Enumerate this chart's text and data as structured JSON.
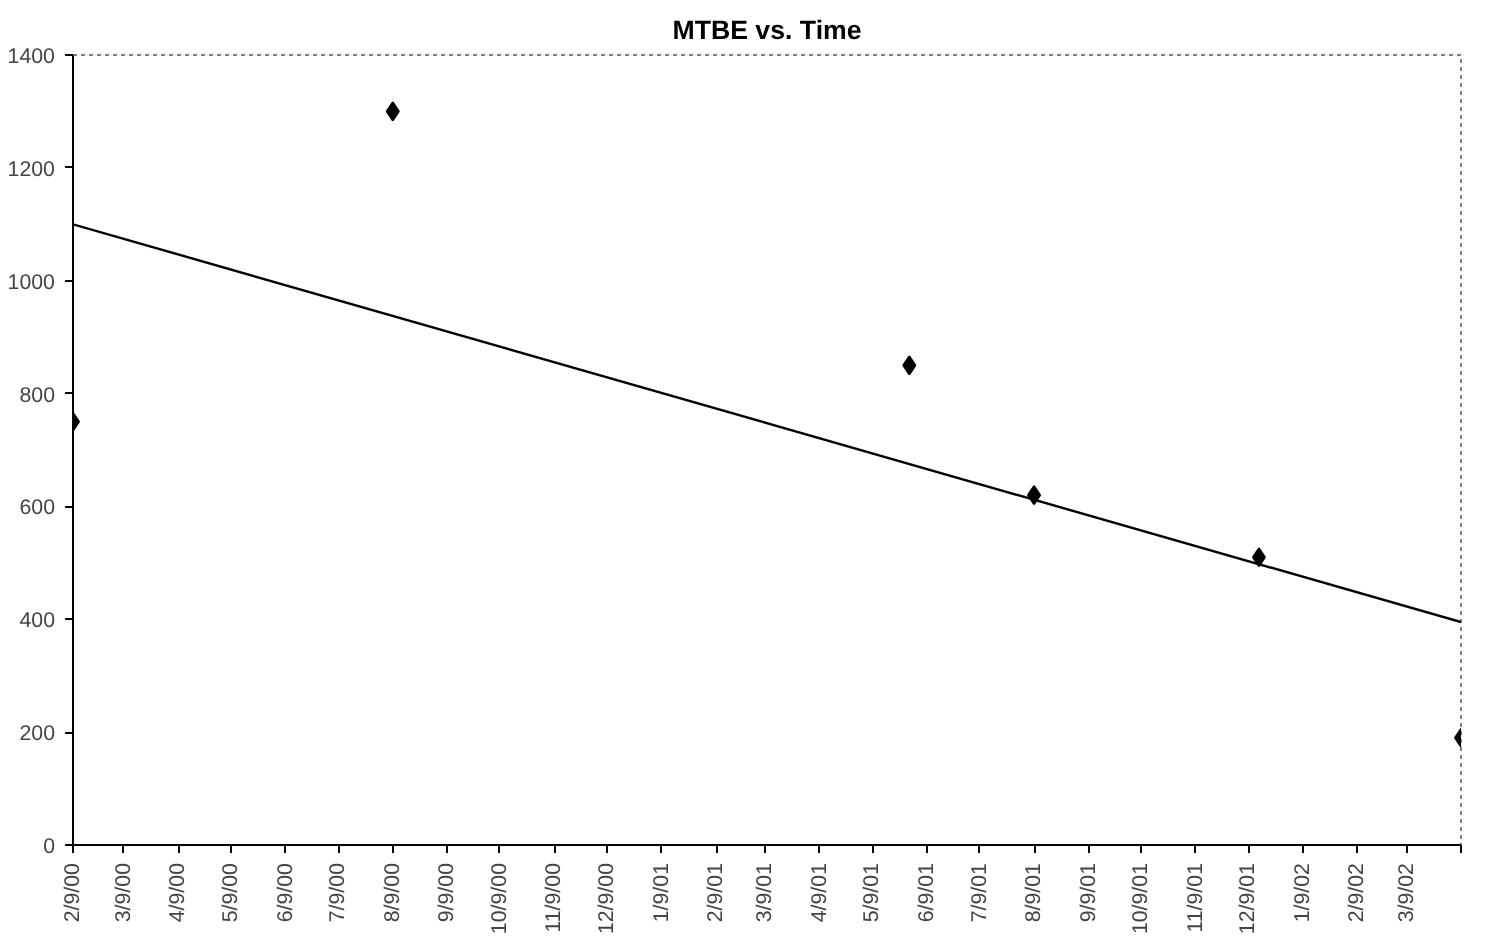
{
  "chart_data": {
    "type": "scatter",
    "title": "MTBE vs. Time",
    "x": [
      "2000-02-09",
      "2000-08-09",
      "2001-05-30",
      "2001-08-09",
      "2001-12-15",
      "2002-04-09"
    ],
    "series": [
      {
        "color": "#000000",
        "marker": "diamond",
        "values": [
          750,
          1300,
          850,
          620,
          510,
          190
        ]
      },
      {
        "type": "line",
        "color": "#000000",
        "marker": "none",
        "x": [
          "2000-02-09",
          "2002-04-09"
        ],
        "values": [
          1100,
          395
        ]
      }
    ],
    "xlim": [
      "2000-02-09",
      "2002-04-09"
    ],
    "xticks": [
      {
        "value": "2000-02-09",
        "label": "2/9/00"
      },
      {
        "value": "2000-03-09",
        "label": "3/9/00"
      },
      {
        "value": "2000-04-09",
        "label": "4/9/00"
      },
      {
        "value": "2000-05-09",
        "label": "5/9/00"
      },
      {
        "value": "2000-06-09",
        "label": "6/9/00"
      },
      {
        "value": "2000-07-09",
        "label": "7/9/00"
      },
      {
        "value": "2000-08-09",
        "label": "8/9/00"
      },
      {
        "value": "2000-09-09",
        "label": "9/9/00"
      },
      {
        "value": "2000-10-09",
        "label": "10/9/00"
      },
      {
        "value": "2000-11-09",
        "label": "11/9/00"
      },
      {
        "value": "2000-12-09",
        "label": "12/9/00"
      },
      {
        "value": "2001-01-09",
        "label": "1/9/01"
      },
      {
        "value": "2001-02-09",
        "label": "2/9/01"
      },
      {
        "value": "2001-03-09",
        "label": "3/9/01"
      },
      {
        "value": "2001-04-09",
        "label": "4/9/01"
      },
      {
        "value": "2001-05-09",
        "label": "5/9/01"
      },
      {
        "value": "2001-06-09",
        "label": "6/9/01"
      },
      {
        "value": "2001-07-09",
        "label": "7/9/01"
      },
      {
        "value": "2001-08-09",
        "label": "8/9/01"
      },
      {
        "value": "2001-09-09",
        "label": "9/9/01"
      },
      {
        "value": "2001-10-09",
        "label": "10/9/01"
      },
      {
        "value": "2001-11-09",
        "label": "11/9/01"
      },
      {
        "value": "2001-12-09",
        "label": "12/9/01"
      },
      {
        "value": "2002-01-09",
        "label": "1/9/02"
      },
      {
        "value": "2002-02-09",
        "label": "2/9/02"
      },
      {
        "value": "2002-03-09",
        "label": "3/9/02"
      },
      {
        "value": "2002-04-09",
        "label": null
      }
    ],
    "ylim": [
      0,
      1400
    ],
    "yticks": [
      0,
      200,
      400,
      600,
      800,
      1000,
      1200,
      1400
    ],
    "grid": false
  }
}
